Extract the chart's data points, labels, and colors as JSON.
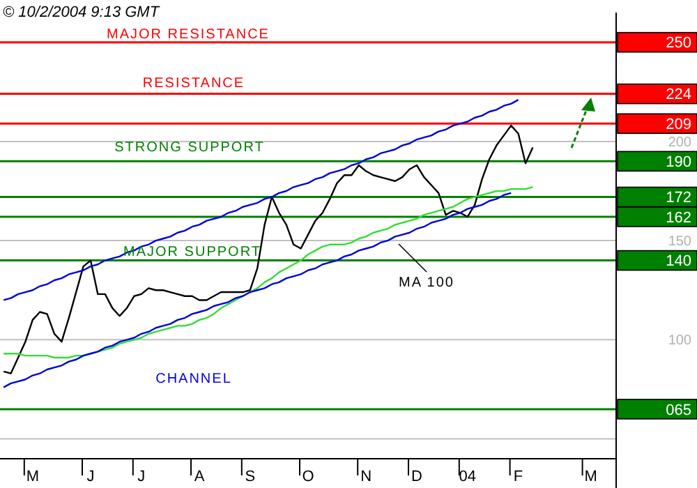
{
  "chart_data": {
    "type": "line",
    "title": "© 10/2/2004 9:13 GMT",
    "categories": [
      null,
      null,
      null,
      null,
      "M",
      null,
      null,
      null,
      null,
      null,
      null,
      null,
      "J",
      null,
      null,
      null,
      null,
      null,
      null,
      "J",
      null,
      null,
      null,
      null,
      null,
      null,
      null,
      "A",
      null,
      null,
      null,
      null,
      null,
      null,
      "S",
      null,
      null,
      null,
      null,
      null,
      null,
      null,
      "O",
      null,
      null,
      null,
      null,
      null,
      null,
      null,
      "N",
      null,
      null,
      null,
      null,
      null,
      null,
      "D",
      null,
      null,
      null,
      null,
      null,
      null,
      "04",
      null,
      null,
      null,
      null,
      null,
      null,
      "F",
      null,
      null,
      null,
      null,
      null,
      null,
      null,
      null,
      null,
      "M",
      null,
      null,
      null
    ],
    "ylim": [
      40,
      265
    ],
    "yticks": [
      {
        "value": 50,
        "label": null
      },
      100,
      150,
      200,
      {
        "value": 250,
        "label": null
      }
    ],
    "grid": "y",
    "marker": "none",
    "line_style": "solid",
    "series": [
      {
        "color": "#000000",
        "values": [
          84,
          83,
          91,
          99,
          110,
          114,
          113,
          103,
          99,
          111,
          124,
          137,
          140,
          123,
          123,
          116,
          112,
          116,
          122,
          123,
          126,
          125,
          125,
          124,
          123,
          122,
          122,
          120,
          120,
          122,
          124,
          124,
          124,
          124,
          125,
          136,
          158,
          172,
          164,
          158,
          148,
          146,
          153,
          160,
          164,
          171,
          179,
          183,
          183,
          188,
          185,
          183,
          182,
          181,
          180,
          182,
          186,
          188,
          182,
          178,
          174,
          163,
          165,
          164,
          162,
          168,
          181,
          191,
          198,
          203,
          208,
          204,
          189,
          197,
          null,
          null,
          null,
          null,
          null,
          null,
          null,
          null,
          null,
          null,
          null
        ]
      },
      {
        "color": "#33dd33",
        "values": [
          93,
          93,
          93,
          92,
          92,
          92,
          92,
          91,
          91,
          91,
          92,
          92,
          93,
          94,
          95,
          96,
          98,
          99,
          100,
          101,
          103,
          104,
          105,
          106,
          107,
          107,
          108,
          110,
          111,
          113,
          116,
          118,
          120,
          122,
          124,
          126,
          129,
          131,
          134,
          136,
          138,
          140,
          143,
          145,
          147,
          148,
          148,
          148,
          149,
          151,
          152,
          154,
          155,
          156,
          158,
          159,
          160,
          161,
          163,
          164,
          165,
          166,
          167,
          169,
          171,
          172,
          173,
          174,
          175,
          175,
          176,
          176,
          176,
          177,
          null,
          null,
          null,
          null,
          null,
          null,
          null,
          null,
          null,
          null,
          null
        ]
      },
      {
        "color": "#0000dd",
        "values": [
          76,
          78,
          79,
          80,
          82,
          83,
          85,
          86,
          87,
          89,
          90,
          92,
          93,
          94,
          96,
          97,
          99,
          100,
          101,
          103,
          104,
          106,
          107,
          108,
          110,
          111,
          113,
          114,
          115,
          117,
          118,
          119,
          121,
          122,
          124,
          125,
          126,
          128,
          129,
          131,
          132,
          133,
          135,
          136,
          138,
          139,
          140,
          142,
          143,
          145,
          146,
          147,
          149,
          150,
          152,
          153,
          154,
          156,
          157,
          159,
          160,
          161,
          163,
          164,
          166,
          167,
          168,
          170,
          171,
          173,
          174,
          null,
          null,
          null,
          null,
          null,
          null,
          null,
          null,
          null,
          null,
          null,
          null,
          null,
          null
        ]
      },
      {
        "color": "#0000dd",
        "values": [
          120,
          121,
          123,
          124,
          125,
          127,
          128,
          130,
          131,
          133,
          134,
          135,
          137,
          138,
          140,
          141,
          142,
          144,
          145,
          147,
          148,
          150,
          151,
          152,
          154,
          155,
          157,
          158,
          160,
          161,
          162,
          164,
          165,
          167,
          168,
          169,
          171,
          172,
          174,
          175,
          177,
          178,
          179,
          181,
          182,
          184,
          185,
          186,
          188,
          189,
          191,
          192,
          194,
          195,
          196,
          198,
          199,
          201,
          202,
          203,
          205,
          206,
          208,
          209,
          210,
          212,
          213,
          215,
          216,
          218,
          219,
          221,
          null,
          null,
          null,
          null,
          null,
          null,
          null,
          null,
          null,
          null,
          null,
          null,
          null
        ]
      }
    ],
    "ref_lines": [
      {
        "axis": "y",
        "value": 250,
        "label": "250",
        "color": "#ff0000"
      },
      {
        "axis": "y",
        "value": 224,
        "label": "224",
        "color": "#ff0000"
      },
      {
        "axis": "y",
        "value": 209,
        "label": "209",
        "color": "#ff0000"
      },
      {
        "axis": "y",
        "value": 190,
        "label": "190",
        "color": "#008000"
      },
      {
        "axis": "y",
        "value": 172,
        "label": "172",
        "color": "#008000"
      },
      {
        "axis": "y",
        "value": 162,
        "label": "162",
        "color": "#008000"
      },
      {
        "axis": "y",
        "value": 140,
        "label": "140",
        "color": "#008000"
      },
      {
        "axis": "y",
        "value": 65,
        "label": "065",
        "color": "#008000"
      }
    ],
    "annotations": [
      "MAJOR RESISTANCE",
      "RESISTANCE",
      "STRONG SUPPORT",
      "MAJOR SUPPORT",
      "CHANNEL",
      "MA 100"
    ]
  }
}
